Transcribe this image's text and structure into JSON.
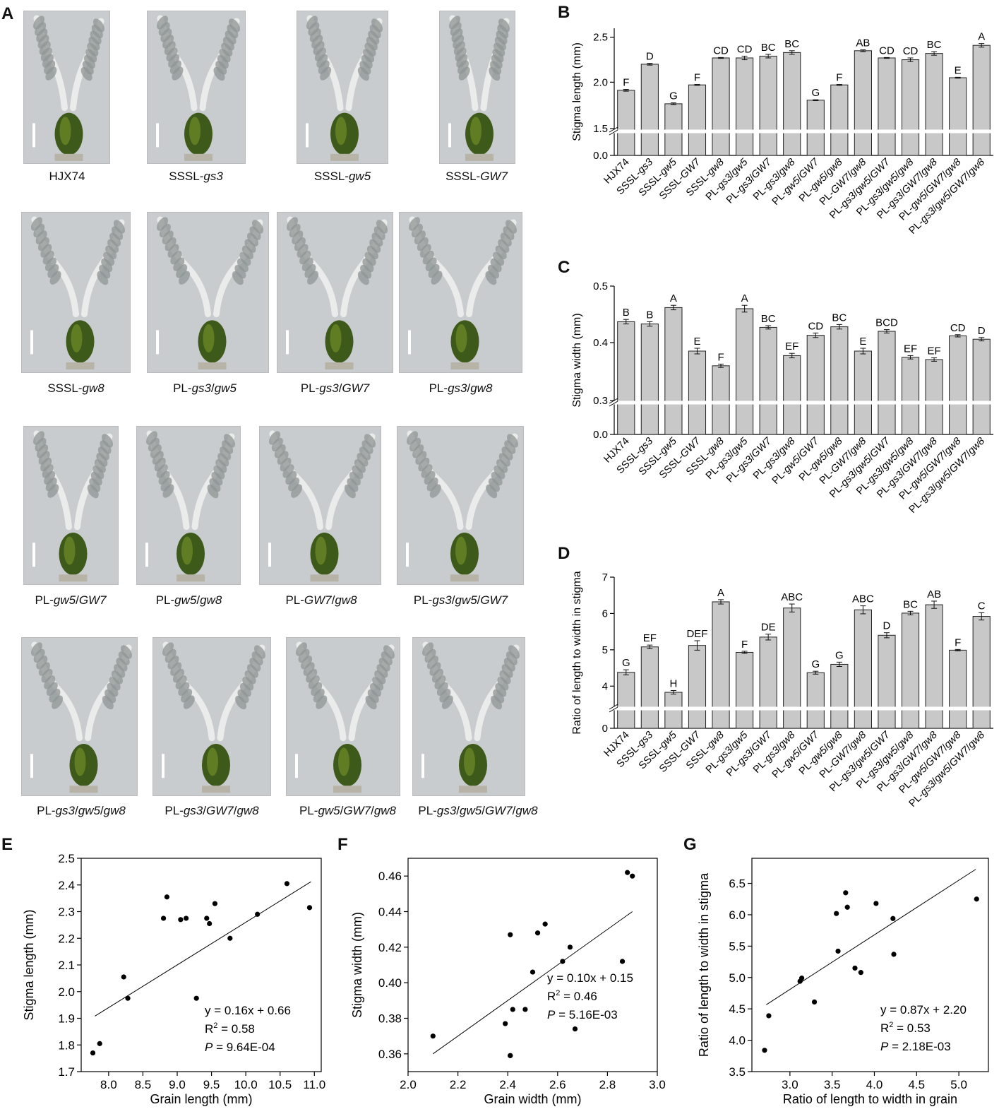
{
  "panels": {
    "A": "A",
    "B": "B",
    "C": "C",
    "D": "D",
    "E": "E",
    "F": "F",
    "G": "G"
  },
  "photos": [
    {
      "parts": [
        [
          "HJX74",
          false
        ]
      ]
    },
    {
      "parts": [
        [
          "SSSL-",
          false
        ],
        [
          "gs3",
          true
        ]
      ]
    },
    {
      "parts": [
        [
          "SSSL-",
          false
        ],
        [
          "gw5",
          true
        ]
      ]
    },
    {
      "parts": [
        [
          "SSSL-",
          false
        ],
        [
          "GW7",
          true
        ]
      ]
    },
    {
      "parts": [
        [
          "SSSL-",
          false
        ],
        [
          "gw8",
          true
        ]
      ]
    },
    {
      "parts": [
        [
          "PL-",
          false
        ],
        [
          "gs3",
          true
        ],
        [
          "/",
          false
        ],
        [
          "gw5",
          true
        ]
      ]
    },
    {
      "parts": [
        [
          "PL-",
          false
        ],
        [
          "gs3",
          true
        ],
        [
          "/",
          false
        ],
        [
          "GW7",
          true
        ]
      ]
    },
    {
      "parts": [
        [
          "PL-",
          false
        ],
        [
          "gs3",
          true
        ],
        [
          "/",
          false
        ],
        [
          "gw8",
          true
        ]
      ]
    },
    {
      "parts": [
        [
          "PL-",
          false
        ],
        [
          "gw5",
          true
        ],
        [
          "/",
          false
        ],
        [
          "GW7",
          true
        ]
      ]
    },
    {
      "parts": [
        [
          "PL-",
          false
        ],
        [
          "gw5",
          true
        ],
        [
          "/",
          false
        ],
        [
          "gw8",
          true
        ]
      ]
    },
    {
      "parts": [
        [
          "PL-",
          false
        ],
        [
          "GW7",
          true
        ],
        [
          "/",
          false
        ],
        [
          "gw8",
          true
        ]
      ]
    },
    {
      "parts": [
        [
          "PL-",
          false
        ],
        [
          "gs3",
          true
        ],
        [
          "/",
          false
        ],
        [
          "gw5",
          true
        ],
        [
          "/",
          false
        ],
        [
          "GW7",
          true
        ]
      ]
    },
    {
      "parts": [
        [
          "PL-",
          false
        ],
        [
          "gs3",
          true
        ],
        [
          "/",
          false
        ],
        [
          "gw5",
          true
        ],
        [
          "/",
          false
        ],
        [
          "gw8",
          true
        ]
      ]
    },
    {
      "parts": [
        [
          "PL-",
          false
        ],
        [
          "gs3",
          true
        ],
        [
          "/",
          false
        ],
        [
          "GW7",
          true
        ],
        [
          "/",
          false
        ],
        [
          "gw8",
          true
        ]
      ]
    },
    {
      "parts": [
        [
          "PL-",
          false
        ],
        [
          "gw5",
          true
        ],
        [
          "/",
          false
        ],
        [
          "GW7",
          true
        ],
        [
          "/",
          false
        ],
        [
          "gw8",
          true
        ]
      ]
    },
    {
      "parts": [
        [
          "PL-",
          false
        ],
        [
          "gs3",
          true
        ],
        [
          "/",
          false
        ],
        [
          "gw5",
          true
        ],
        [
          "/",
          false
        ],
        [
          "GW7",
          true
        ],
        [
          "/",
          false
        ],
        [
          "gw8",
          true
        ]
      ]
    }
  ],
  "chart_data": [
    {
      "id": "B",
      "type": "bar",
      "ylabel": "Stigma length (mm)",
      "categories": [
        "HJX74",
        "SSSL-gs3",
        "SSSL-gw5",
        "SSSL-GW7",
        "SSSL-gw8",
        "PL-gs3/gw5",
        "PL-gs3/GW7",
        "PL-gs3/gw8",
        "PL-gw5/GW7",
        "PL-gw5/gw8",
        "PL-GW7/gw8",
        "PL-gs3/gw5/GW7",
        "PL-gs3/gw5/gw8",
        "PL-gs3/GW7/gw8",
        "PL-gw5/GW7/gw8",
        "PL-gs3/gw5/GW7/gw8"
      ],
      "values": [
        1.91,
        2.2,
        1.76,
        1.97,
        2.27,
        2.27,
        2.29,
        2.33,
        1.8,
        1.97,
        2.35,
        2.27,
        2.25,
        2.32,
        2.05,
        2.41
      ],
      "errors": [
        0.01,
        0.01,
        0.01,
        0.005,
        0.005,
        0.02,
        0.02,
        0.02,
        0.005,
        0.005,
        0.01,
        0.005,
        0.02,
        0.02,
        0.005,
        0.02
      ],
      "letters": [
        "F",
        "D",
        "G",
        "F",
        "CD",
        "CD",
        "BC",
        "BC",
        "G",
        "F",
        "AB",
        "CD",
        "CD",
        "BC",
        "E",
        "A"
      ],
      "break": 1.5,
      "ylim": [
        1.5,
        2.6
      ],
      "ticks": [
        "0.0",
        "1.5",
        "2.0",
        "2.5"
      ]
    },
    {
      "id": "C",
      "type": "bar",
      "ylabel": "Stigma width (mm)",
      "categories": [
        "HJX74",
        "SSSL-gs3",
        "SSSL-gw5",
        "SSSL-GW7",
        "SSSL-gw8",
        "PL-gs3/gw5",
        "PL-gs3/GW7",
        "PL-gs3/gw8",
        "PL-gw5/GW7",
        "PL-gw5/gw8",
        "PL-GW7/gw8",
        "PL-gs3/gw5/GW7",
        "PL-gs3/gw5/gw8",
        "PL-gs3/GW7/gw8",
        "PL-gw5/GW7/gw8",
        "PL-gs3/gw5/GW7/gw8"
      ],
      "values": [
        0.437,
        0.433,
        0.462,
        0.385,
        0.359,
        0.46,
        0.427,
        0.377,
        0.413,
        0.428,
        0.385,
        0.42,
        0.374,
        0.37,
        0.412,
        0.406
      ],
      "errors": [
        0.004,
        0.004,
        0.004,
        0.005,
        0.003,
        0.006,
        0.003,
        0.004,
        0.004,
        0.004,
        0.005,
        0.003,
        0.003,
        0.003,
        0.002,
        0.003
      ],
      "letters": [
        "B",
        "B",
        "A",
        "E",
        "F",
        "A",
        "BC",
        "EF",
        "CD",
        "BC",
        "E",
        "BCD",
        "EF",
        "EF",
        "CD",
        "D"
      ],
      "break": 0.3,
      "ylim": [
        0.3,
        0.5
      ],
      "ticks": [
        "0.0",
        "0.3",
        "0.4",
        "0.5"
      ]
    },
    {
      "id": "D",
      "type": "bar",
      "ylabel": "Ratio of length to width in stigma",
      "categories": [
        "HJX74",
        "SSSL-gs3",
        "SSSL-gw5",
        "SSSL-GW7",
        "SSSL-gw8",
        "PL-gs3/gw5",
        "PL-gs3/GW7",
        "PL-gs3/gw8",
        "PL-gw5/GW7",
        "PL-gw5/gw8",
        "PL-GW7/gw8",
        "PL-gs3/gw5/GW7",
        "PL-gs3/gw5/gw8",
        "PL-gs3/GW7/gw8",
        "PL-gw5/GW7/gw8",
        "PL-gs3/gw5/GW7/gw8"
      ],
      "values": [
        4.38,
        5.08,
        3.83,
        5.12,
        6.32,
        4.93,
        5.35,
        6.15,
        4.37,
        4.6,
        6.1,
        5.4,
        6.01,
        6.24,
        4.99,
        5.92
      ],
      "errors": [
        0.07,
        0.05,
        0.05,
        0.13,
        0.06,
        0.03,
        0.08,
        0.11,
        0.04,
        0.06,
        0.11,
        0.07,
        0.05,
        0.1,
        0.02,
        0.1
      ],
      "letters": [
        "G",
        "EF",
        "H",
        "DEF",
        "A",
        "F",
        "DE",
        "ABC",
        "G",
        "G",
        "ABC",
        "D",
        "BC",
        "AB",
        "F",
        "C"
      ],
      "break": 3.5,
      "ylim": [
        3.5,
        7
      ],
      "ticks": [
        "0",
        "4",
        "5",
        "6",
        "7"
      ]
    },
    {
      "id": "E",
      "type": "scatter",
      "xlabel": "Grain length (mm)",
      "ylabel": "Stigma length (mm)",
      "xlim": [
        7.6,
        11.1
      ],
      "ylim": [
        1.7,
        2.5
      ],
      "xticks": [
        "8.0",
        "8.5",
        "9.0",
        "9.5",
        "10.0",
        "10.5",
        "11.0"
      ],
      "yticks": [
        "1.7",
        "1.8",
        "1.9",
        "2.0",
        "2.1",
        "2.2",
        "2.3",
        "2.4",
        "2.5"
      ],
      "x": [
        7.77,
        7.87,
        8.22,
        8.28,
        8.8,
        8.85,
        9.05,
        9.13,
        9.28,
        9.43,
        9.47,
        9.55,
        9.77,
        10.17,
        10.6,
        10.93
      ],
      "y": [
        1.77,
        1.805,
        2.055,
        1.975,
        2.275,
        2.355,
        2.27,
        2.275,
        1.975,
        2.275,
        2.255,
        2.33,
        2.2,
        2.29,
        2.405,
        2.315
      ],
      "fit": {
        "slope": 0.16,
        "intercept": 0.66,
        "x0": 7.8,
        "x1": 10.95
      },
      "eq": "y = 0.16x + 0.66",
      "r2_prefix": "R",
      "r2_value": " = 0.58",
      "p_value": " = 9.64E-04"
    },
    {
      "id": "F",
      "type": "scatter",
      "xlabel": "Grain width (mm)",
      "ylabel": "Stigma width (mm)",
      "xlim": [
        2.0,
        3.0
      ],
      "ylim": [
        0.35,
        0.47
      ],
      "xticks": [
        "2.0",
        "2.2",
        "2.4",
        "2.6",
        "2.8",
        "3.0"
      ],
      "yticks": [
        "0.36",
        "0.38",
        "0.40",
        "0.42",
        "0.44",
        "0.46"
      ],
      "x": [
        2.1,
        2.39,
        2.41,
        2.41,
        2.42,
        2.47,
        2.5,
        2.52,
        2.55,
        2.62,
        2.65,
        2.67,
        2.86,
        2.88,
        2.9,
        2.41
      ],
      "y": [
        0.37,
        0.377,
        0.359,
        0.427,
        0.385,
        0.385,
        0.406,
        0.428,
        0.433,
        0.412,
        0.42,
        0.374,
        0.412,
        0.462,
        0.46,
        0.359
      ],
      "fit": {
        "slope": 0.1,
        "intercept": 0.15,
        "x0": 2.1,
        "x1": 2.9
      },
      "eq": "y = 0.10x + 0.15",
      "r2_prefix": "R",
      "r2_value": " = 0.46",
      "p_value": " = 5.16E-03"
    },
    {
      "id": "G",
      "type": "scatter",
      "xlabel": "Ratio of length to width in grain",
      "ylabel": "Ratio of length to width in stigma",
      "xlim": [
        2.55,
        5.35
      ],
      "ylim": [
        3.5,
        6.9
      ],
      "xticks": [
        "3.0",
        "3.5",
        "4.0",
        "4.5",
        "5.0"
      ],
      "yticks": [
        "3.5",
        "4.0",
        "4.5",
        "5.0",
        "5.5",
        "6.0",
        "6.5"
      ],
      "x": [
        2.7,
        2.75,
        3.12,
        3.14,
        3.29,
        3.55,
        3.57,
        3.66,
        3.68,
        3.77,
        3.84,
        4.02,
        4.22,
        4.23,
        5.21
      ],
      "y": [
        3.84,
        4.39,
        4.94,
        4.99,
        4.61,
        6.02,
        5.42,
        6.35,
        6.12,
        5.15,
        5.08,
        6.18,
        5.94,
        5.37,
        6.25
      ],
      "fit": {
        "slope": 0.87,
        "intercept": 2.2,
        "x0": 2.72,
        "x1": 5.2
      },
      "eq": "y = 0.87x + 2.20",
      "r2_prefix": "R",
      "r2_value": " = 0.53",
      "p_value": " = 2.18E-03"
    }
  ],
  "labels": {
    "r2_sup": "2",
    "p_letter": "P"
  }
}
